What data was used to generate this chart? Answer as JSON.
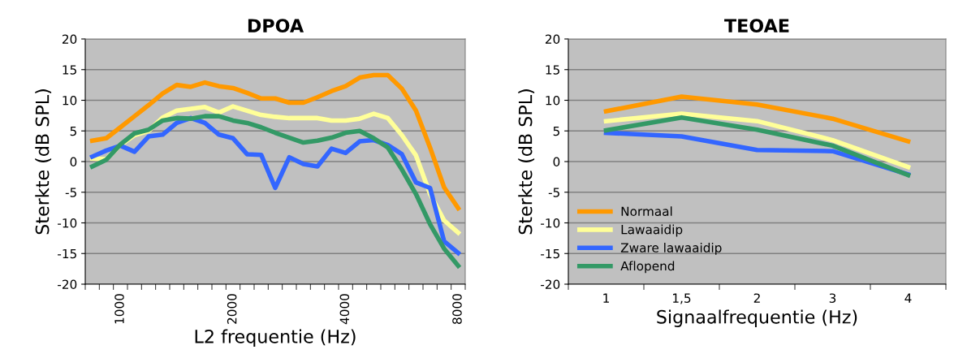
{
  "chart_data": [
    {
      "type": "line",
      "title": "DPOA",
      "xlabel": "L2 frequentie (Hz)",
      "ylabel": "Sterkte (dB SPL)",
      "categories": [
        null,
        null,
        "1000",
        null,
        null,
        null,
        null,
        null,
        null,
        null,
        "2000",
        null,
        null,
        null,
        null,
        null,
        null,
        null,
        "4000",
        null,
        null,
        null,
        null,
        null,
        null,
        null,
        "8000"
      ],
      "series": [
        {
          "color": "#ff9900",
          "values": [
            3.4,
            3.8,
            5.6,
            7.4,
            9.2,
            11.1,
            12.5,
            12.2,
            12.9,
            12.3,
            12.0,
            11.2,
            10.3,
            10.3,
            9.6,
            9.6,
            10.5,
            11.5,
            12.3,
            13.7,
            14.1,
            14.1,
            11.9,
            8.3,
            2.3,
            -4.2,
            -7.6
          ]
        },
        {
          "color": "#ffff99",
          "values": [
            0.5,
            0.4,
            2.7,
            4.3,
            5.0,
            7.2,
            8.3,
            8.6,
            8.9,
            8.0,
            9.0,
            8.3,
            7.6,
            7.3,
            7.1,
            7.1,
            7.1,
            6.7,
            6.7,
            7.0,
            7.8,
            7.1,
            4.3,
            1.0,
            -5.3,
            -9.6,
            -11.6
          ]
        },
        {
          "color": "#3366ff",
          "values": [
            0.8,
            1.8,
            2.6,
            1.6,
            4.1,
            4.4,
            6.3,
            7.1,
            6.3,
            4.4,
            3.8,
            1.2,
            1.1,
            -4.3,
            0.7,
            -0.4,
            -0.8,
            2.1,
            1.4,
            3.3,
            3.5,
            2.7,
            1.2,
            -3.4,
            -4.3,
            -13.0,
            -14.9
          ]
        },
        {
          "color": "#339966",
          "values": [
            -0.8,
            0.3,
            2.8,
            4.6,
            5.2,
            6.7,
            7.1,
            7.0,
            7.4,
            7.4,
            6.7,
            6.3,
            5.6,
            4.7,
            3.9,
            3.1,
            3.4,
            3.9,
            4.7,
            5.0,
            3.8,
            2.3,
            -1.3,
            -5.3,
            -10.2,
            -14.2,
            -17.0
          ]
        }
      ],
      "ylim": [
        -20,
        20
      ],
      "yticks": [
        -20,
        -15,
        -10,
        -5,
        0,
        5,
        10,
        15,
        20
      ],
      "grid": "y",
      "marker": "none",
      "line_style": "solid"
    },
    {
      "type": "line",
      "title": "TEOAE",
      "xlabel": "Signaalfrequentie (Hz)",
      "ylabel": "Sterkte (dB SPL)",
      "categories": [
        "1",
        "1,5",
        "2",
        "3",
        "4"
      ],
      "series": [
        {
          "name": "Normaal",
          "color": "#ff9900",
          "values": [
            8.2,
            10.6,
            9.3,
            7.0,
            3.3
          ]
        },
        {
          "name": "Lawaaidip",
          "color": "#ffff99",
          "values": [
            6.6,
            7.8,
            6.6,
            3.5,
            -0.9
          ]
        },
        {
          "name": "Zware lawaaidip",
          "color": "#3366ff",
          "values": [
            4.7,
            4.1,
            1.9,
            1.7,
            -2.1
          ]
        },
        {
          "name": "Aflopend",
          "color": "#339966",
          "values": [
            5.1,
            7.2,
            5.2,
            2.6,
            -2.2
          ]
        }
      ],
      "ylim": [
        -20,
        20
      ],
      "yticks": [
        -20,
        -15,
        -10,
        -5,
        0,
        5,
        10,
        15,
        20
      ],
      "grid": "y",
      "marker": "none",
      "line_style": "solid",
      "legend": "bottom left"
    }
  ]
}
